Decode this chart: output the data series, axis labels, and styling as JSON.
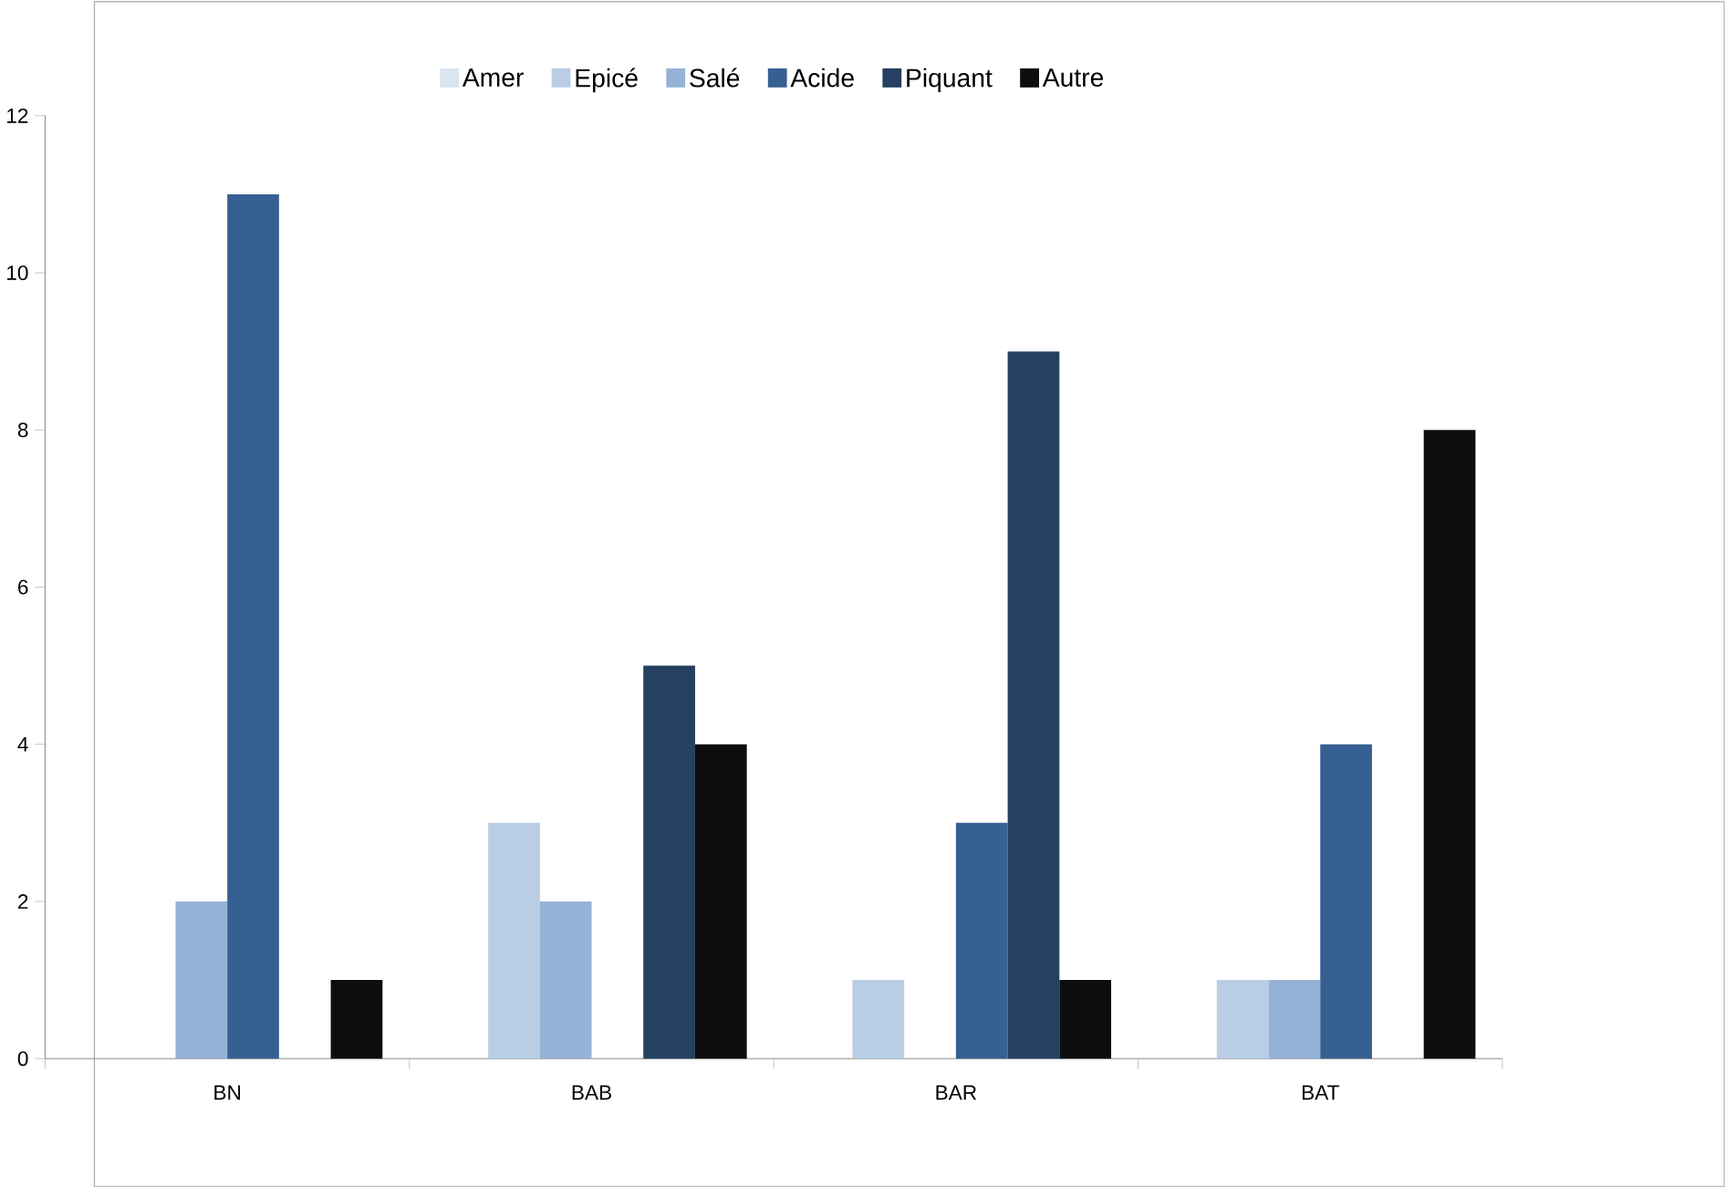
{
  "chart_data": {
    "type": "bar",
    "categories": [
      "BN",
      "BAB",
      "BAR",
      "BAT"
    ],
    "series": [
      {
        "name": "Amer",
        "color": "#dbe5f1",
        "values": [
          0,
          0,
          0,
          0
        ]
      },
      {
        "name": "Epicé",
        "color": "#b9cde5",
        "values": [
          0,
          3,
          1,
          1
        ]
      },
      {
        "name": "Salé",
        "color": "#95b3d7",
        "values": [
          2,
          2,
          0,
          1
        ]
      },
      {
        "name": "Acide",
        "color": "#376092",
        "values": [
          11,
          0,
          3,
          4
        ]
      },
      {
        "name": "Piquant",
        "color": "#254061",
        "values": [
          0,
          5,
          9,
          0
        ]
      },
      {
        "name": "Autre",
        "color": "#0d0d0d",
        "values": [
          1,
          4,
          1,
          8
        ]
      }
    ],
    "ylim": [
      0,
      12
    ],
    "yticks": [
      0,
      2,
      4,
      6,
      8,
      10,
      12
    ],
    "grid": false,
    "legend": "top"
  }
}
